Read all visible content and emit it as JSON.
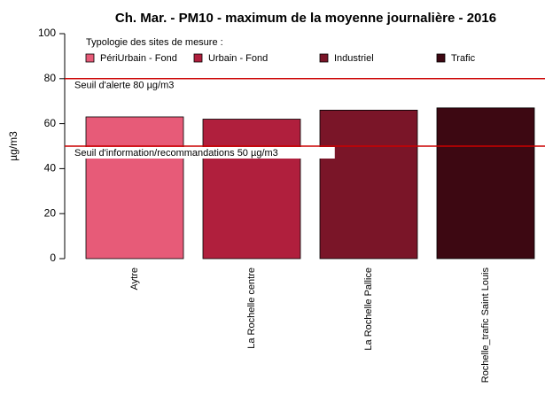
{
  "chart_data": {
    "type": "bar",
    "title": "Ch. Mar. - PM10 - maximum de la moyenne journalière - 2016",
    "y_label": "µg/m3",
    "categories": [
      "Aytre",
      "La Rochelle centre",
      "La Rochelle Pallice",
      "Rochelle_trafic Saint Louis"
    ],
    "values": [
      63,
      62,
      66,
      67
    ],
    "colors": [
      "#e75b78",
      "#b01f3d",
      "#7a1528",
      "#3d0812"
    ],
    "ylim": [
      0,
      100
    ],
    "yticks": [
      0,
      20,
      40,
      60,
      80,
      100
    ],
    "legend": {
      "title": "Typologie des sites de mesure :",
      "entries": [
        "PériUrbain - Fond",
        "Urbain - Fond",
        "Industriel",
        "Trafic"
      ]
    },
    "reference_lines": [
      {
        "value": 80,
        "label": "Seuil d'alerte 80 µg/m3",
        "color": "#cc0000"
      },
      {
        "value": 50,
        "label": "Seuil d'information/recommandations 50 µg/m3",
        "color": "#cc0000"
      }
    ]
  }
}
